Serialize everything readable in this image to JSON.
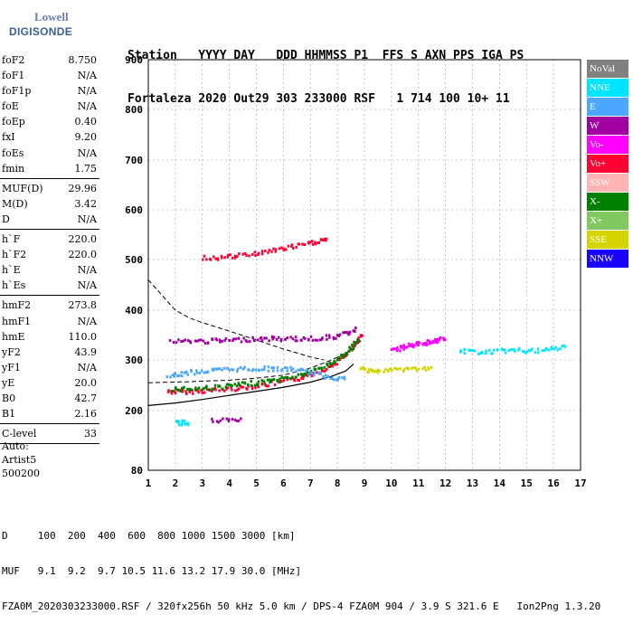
{
  "logo": {
    "line1": "Lowell",
    "line2": "DIGISONDE"
  },
  "header": {
    "labels": "Station   YYYY DAY   DDD HHMMSS P1  FFS S AXN PPS IGA PS",
    "values": "Fortaleza 2020 Out29 303 233000 RSF   1 714 100 10+ 11"
  },
  "parameters": [
    [
      {
        "name": "foF2",
        "value": "8.750"
      },
      {
        "name": "foF1",
        "value": "N/A"
      },
      {
        "name": "foF1p",
        "value": "N/A"
      },
      {
        "name": "foE",
        "value": "N/A"
      },
      {
        "name": "foEp",
        "value": "0.40"
      },
      {
        "name": "fxI",
        "value": "9.20"
      },
      {
        "name": "foEs",
        "value": "N/A"
      },
      {
        "name": "fmin",
        "value": "1.75"
      }
    ],
    [
      {
        "name": "MUF(D)",
        "value": "29.96"
      },
      {
        "name": "M(D)",
        "value": "3.42"
      },
      {
        "name": "D",
        "value": "N/A"
      }
    ],
    [
      {
        "name": "h`F",
        "value": "220.0"
      },
      {
        "name": "h`F2",
        "value": "220.0"
      },
      {
        "name": "h`E",
        "value": "N/A"
      },
      {
        "name": "h`Es",
        "value": "N/A"
      }
    ],
    [
      {
        "name": "hmF2",
        "value": "273.8"
      },
      {
        "name": "hmF1",
        "value": "N/A"
      },
      {
        "name": "hmE",
        "value": "110.0"
      },
      {
        "name": "yF2",
        "value": "43.9"
      },
      {
        "name": "yF1",
        "value": "N/A"
      },
      {
        "name": "yE",
        "value": "20.0"
      },
      {
        "name": "B0",
        "value": "42.7"
      },
      {
        "name": "B1",
        "value": "2.16"
      }
    ],
    [
      {
        "name": "C-level",
        "value": "33"
      }
    ]
  ],
  "auto_block": {
    "line1": "Auto:",
    "line2": "Artist5",
    "line3": "500200"
  },
  "legend": [
    {
      "label": "NoVal",
      "color": "#808080"
    },
    {
      "label": "NNE",
      "color": "#00e5ff"
    },
    {
      "label": "E",
      "color": "#4da6ff"
    },
    {
      "label": "W",
      "color": "#a000a0"
    },
    {
      "label": "Vo-",
      "color": "#ff00ff"
    },
    {
      "label": "Vo+",
      "color": "#ff0033"
    },
    {
      "label": "SSW",
      "color": "#ffb3b3"
    },
    {
      "label": "X-",
      "color": "#008000"
    },
    {
      "label": "X+",
      "color": "#80c860"
    },
    {
      "label": "SSE",
      "color": "#d4d400"
    },
    {
      "label": "NNW",
      "color": "#1a00ff"
    }
  ],
  "footer": {
    "line1": "D     100  200  400  600  800 1000 1500 3000 [km]",
    "line2": "MUF   9.1  9.2  9.7 10.5 11.6 13.2 17.9 30.0 [MHz]",
    "line3": "FZA0M_2020303233000.RSF / 320fx256h 50 kHz 5.0 km / DPS-4 FZA0M 904 / 3.9 S 321.6 E   Ion2Png 1.3.20"
  },
  "chart_data": {
    "type": "scatter",
    "xlim": [
      1,
      17
    ],
    "ylim": [
      80,
      900
    ],
    "x_ticks": [
      1,
      2,
      3,
      4,
      5,
      6,
      7,
      8,
      9,
      10,
      11,
      12,
      13,
      14,
      15,
      16,
      17
    ],
    "y_ticks": [
      80,
      200,
      300,
      400,
      500,
      600,
      700,
      800,
      900
    ],
    "grid": "dashed",
    "legend_position": "right",
    "profile_curve": {
      "points": [
        [
          1.0,
          210
        ],
        [
          2,
          215
        ],
        [
          3,
          222
        ],
        [
          4,
          230
        ],
        [
          5,
          238
        ],
        [
          6,
          246
        ],
        [
          7,
          256
        ],
        [
          7.8,
          268
        ],
        [
          8.3,
          278
        ],
        [
          8.6,
          292
        ]
      ]
    },
    "mufs_dashed_curve": {
      "points": [
        [
          1.0,
          255
        ],
        [
          2.5,
          257
        ],
        [
          3,
          258
        ],
        [
          4,
          260
        ],
        [
          5,
          264
        ],
        [
          6,
          270
        ],
        [
          7,
          284
        ],
        [
          7.8,
          300
        ],
        [
          8.5,
          320
        ],
        [
          8.9,
          340
        ]
      ]
    },
    "upper_dashed_curve": {
      "points": [
        [
          1.0,
          460
        ],
        [
          1.5,
          430
        ],
        [
          2,
          400
        ],
        [
          2.5,
          385
        ],
        [
          3,
          375
        ],
        [
          4,
          358
        ],
        [
          5,
          340
        ],
        [
          6,
          322
        ],
        [
          7,
          306
        ],
        [
          7.5,
          300
        ]
      ]
    },
    "echo_traces": [
      {
        "name": "Vo+",
        "color": "#ff0033",
        "points": [
          [
            1.7,
            240
          ],
          [
            2.5,
            240
          ],
          [
            3.5,
            243
          ],
          [
            4.5,
            248
          ],
          [
            5.5,
            255
          ],
          [
            6.5,
            265
          ],
          [
            7.3,
            280
          ],
          [
            8,
            300
          ],
          [
            8.6,
            330
          ],
          [
            8.9,
            355
          ]
        ]
      },
      {
        "name": "X-",
        "color": "#008000",
        "points": [
          [
            1.8,
            245
          ],
          [
            2.8,
            246
          ],
          [
            3.8,
            250
          ],
          [
            4.8,
            256
          ],
          [
            5.8,
            263
          ],
          [
            6.8,
            275
          ],
          [
            7.6,
            292
          ],
          [
            8.3,
            315
          ],
          [
            8.8,
            345
          ]
        ]
      },
      {
        "name": "E",
        "color": "#4da6ff",
        "points": [
          [
            1.7,
            270
          ],
          [
            2.5,
            278
          ],
          [
            3.5,
            282
          ],
          [
            4.5,
            285
          ],
          [
            5.5,
            285
          ],
          [
            6.5,
            283
          ],
          [
            7.5,
            270
          ],
          [
            8.3,
            265
          ]
        ]
      },
      {
        "name": "W",
        "color": "#a000a0",
        "points": [
          [
            1.8,
            340
          ],
          [
            3,
            340
          ],
          [
            4,
            342
          ],
          [
            5,
            345
          ],
          [
            6,
            345
          ],
          [
            7,
            345
          ],
          [
            8,
            350
          ],
          [
            8.7,
            365
          ]
        ]
      },
      {
        "name": "Vo+",
        "color": "#ff0033",
        "points": [
          [
            3,
            505
          ],
          [
            4,
            508
          ],
          [
            5,
            515
          ],
          [
            6,
            525
          ],
          [
            7,
            535
          ],
          [
            7.6,
            545
          ]
        ]
      },
      {
        "name": "Vo-",
        "color": "#ff00ff",
        "points": [
          [
            10,
            320
          ],
          [
            10.5,
            330
          ],
          [
            11,
            335
          ],
          [
            11.5,
            340
          ],
          [
            12,
            345
          ]
        ]
      },
      {
        "name": "NNE",
        "color": "#00e5ff",
        "points": [
          [
            12.5,
            320
          ],
          [
            13.5,
            318
          ],
          [
            14.5,
            322
          ],
          [
            15.5,
            320
          ],
          [
            16.5,
            330
          ]
        ]
      },
      {
        "name": "SSE",
        "color": "#d4d400",
        "points": [
          [
            8.8,
            285
          ],
          [
            9.5,
            280
          ],
          [
            10.5,
            285
          ],
          [
            11.5,
            285
          ]
        ]
      },
      {
        "name": "NNE",
        "color": "#00e5ff",
        "points": [
          [
            2,
            178
          ],
          [
            2.5,
            178
          ]
        ]
      },
      {
        "name": "W",
        "color": "#a000a0",
        "points": [
          [
            3.3,
            182
          ],
          [
            4.5,
            182
          ]
        ]
      }
    ]
  }
}
